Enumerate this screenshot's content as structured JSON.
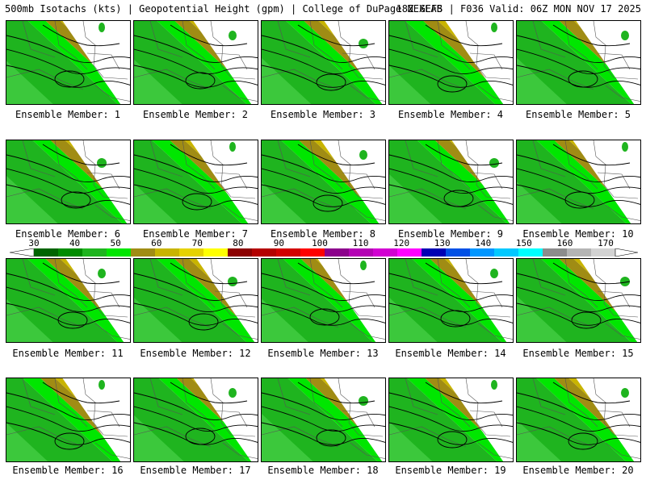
{
  "header": {
    "left": "500mb Isotachs (kts) | Geopotential Height (gpm) | College of DuPage NEXLAB",
    "right": "18Z GEFS | F036 Valid: 06Z MON NOV 17 2025"
  },
  "legend": {
    "ticks": [
      "30",
      "40",
      "50",
      "60",
      "70",
      "80",
      "90",
      "100",
      "110",
      "120",
      "130",
      "140",
      "150",
      "160",
      "170"
    ],
    "colors": [
      "#006400",
      "#008c00",
      "#1fb41f",
      "#00e600",
      "#a08c14",
      "#c8b400",
      "#e6d200",
      "#ffff00",
      "#8c0000",
      "#b40000",
      "#d20000",
      "#ff0000",
      "#8c008c",
      "#b400b4",
      "#d200d2",
      "#ff00ff",
      "#0000b4",
      "#0050e6",
      "#0096ff",
      "#00c8ff",
      "#00ffff",
      "#8c8c8c",
      "#b4b4b4",
      "#d2d2d2"
    ]
  },
  "members": [
    {
      "label": "Ensemble Member: 1"
    },
    {
      "label": "Ensemble Member: 2"
    },
    {
      "label": "Ensemble Member: 3"
    },
    {
      "label": "Ensemble Member: 4"
    },
    {
      "label": "Ensemble Member: 5"
    },
    {
      "label": "Ensemble Member: 6"
    },
    {
      "label": "Ensemble Member: 7"
    },
    {
      "label": "Ensemble Member: 8"
    },
    {
      "label": "Ensemble Member: 9"
    },
    {
      "label": "Ensemble Member: 10"
    },
    {
      "label": "Ensemble Member: 11"
    },
    {
      "label": "Ensemble Member: 12"
    },
    {
      "label": "Ensemble Member: 13"
    },
    {
      "label": "Ensemble Member: 14"
    },
    {
      "label": "Ensemble Member: 15"
    },
    {
      "label": "Ensemble Member: 16"
    },
    {
      "label": "Ensemble Member: 17"
    },
    {
      "label": "Ensemble Member: 18"
    },
    {
      "label": "Ensemble Member: 19"
    },
    {
      "label": "Ensemble Member: 20"
    }
  ]
}
